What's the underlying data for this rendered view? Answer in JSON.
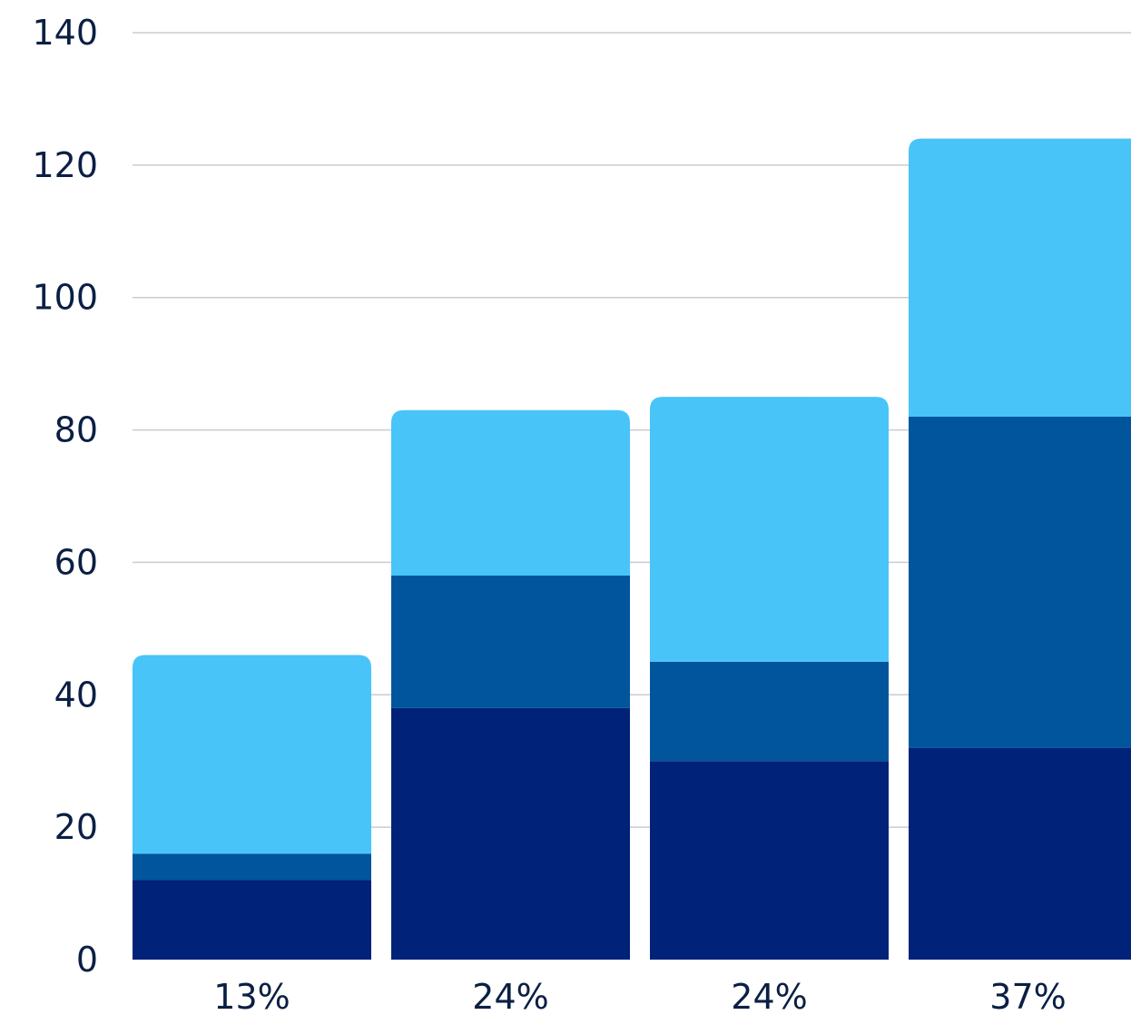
{
  "chart_data": {
    "type": "bar",
    "stacked": true,
    "categories": [
      "13%",
      "24%",
      "24%",
      "37%"
    ],
    "series": [
      {
        "color": "#002279",
        "values": [
          12,
          38,
          30,
          32
        ]
      },
      {
        "color": "#00559d",
        "values": [
          4,
          20,
          15,
          50
        ]
      },
      {
        "color": "#48c4f9",
        "values": [
          30,
          25,
          40,
          42
        ]
      }
    ],
    "title": "",
    "xlabel": "",
    "ylabel": "",
    "ylim": [
      0,
      140
    ],
    "yticks": [
      0,
      20,
      40,
      60,
      80,
      100,
      120,
      140
    ],
    "grid": true,
    "legend": "none"
  }
}
